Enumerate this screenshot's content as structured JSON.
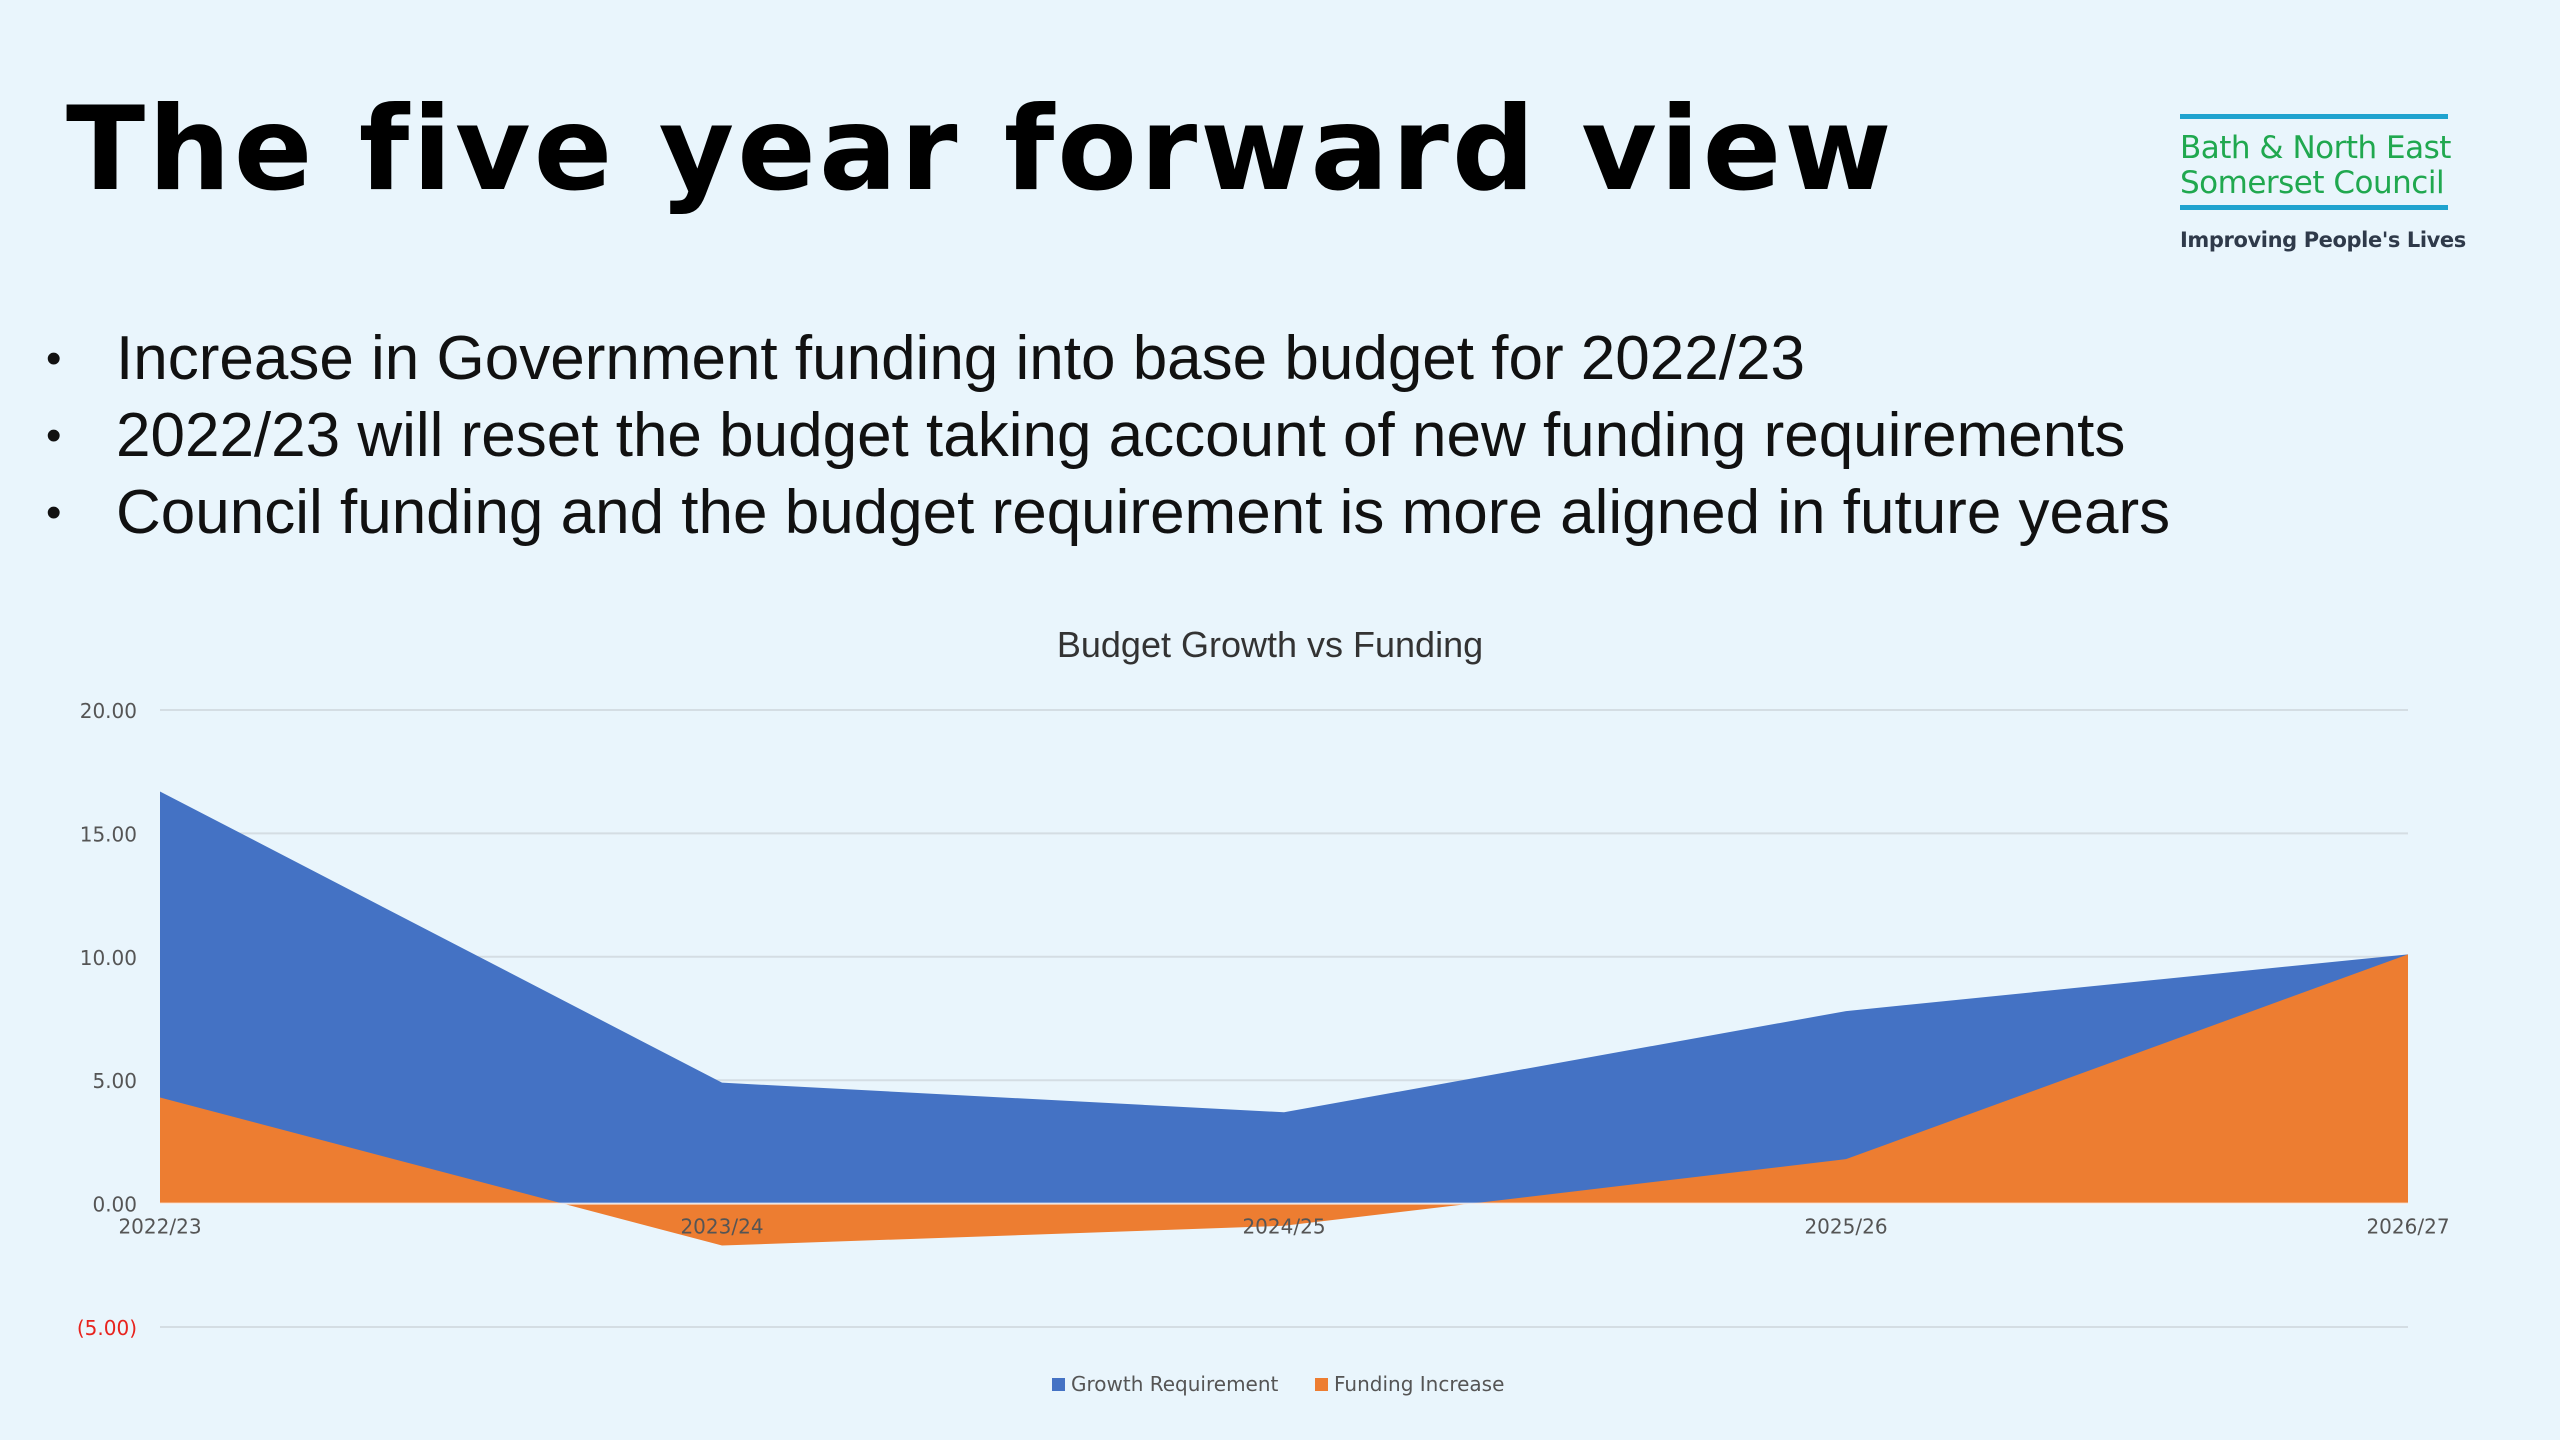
{
  "slide": {
    "title": "The five year forward view",
    "bullets": [
      "Increase in Government funding into base budget for 2022/23",
      "2022/23 will reset the budget taking account of new funding requirements",
      "Council funding and the budget requirement is more aligned in future years"
    ]
  },
  "logo": {
    "line1": "Bath & North East",
    "line2": "Somerset Council",
    "tagline": "Improving People's Lives",
    "text_color": "#20a84f",
    "rule_color": "#1fa3cf"
  },
  "chart_data": {
    "type": "area",
    "title": "Budget Growth vs Funding",
    "categories": [
      "2022/23",
      "2023/24",
      "2024/25",
      "2025/26",
      "2026/27"
    ],
    "series": [
      {
        "name": "Growth Requirement",
        "color": "#4472c4",
        "values": [
          16.7,
          4.9,
          3.7,
          7.8,
          10.1
        ]
      },
      {
        "name": "Funding Increase",
        "color": "#ed7d31",
        "values": [
          4.3,
          -1.7,
          -0.9,
          1.8,
          10.1
        ]
      }
    ],
    "yticks": [
      "20.00",
      "15.00",
      "10.00",
      "5.00",
      "0.00",
      "(5.00)"
    ],
    "ylim": [
      -5,
      20
    ],
    "negative_tick_color": "#e8231e",
    "grid": true,
    "legend": "bottom"
  }
}
